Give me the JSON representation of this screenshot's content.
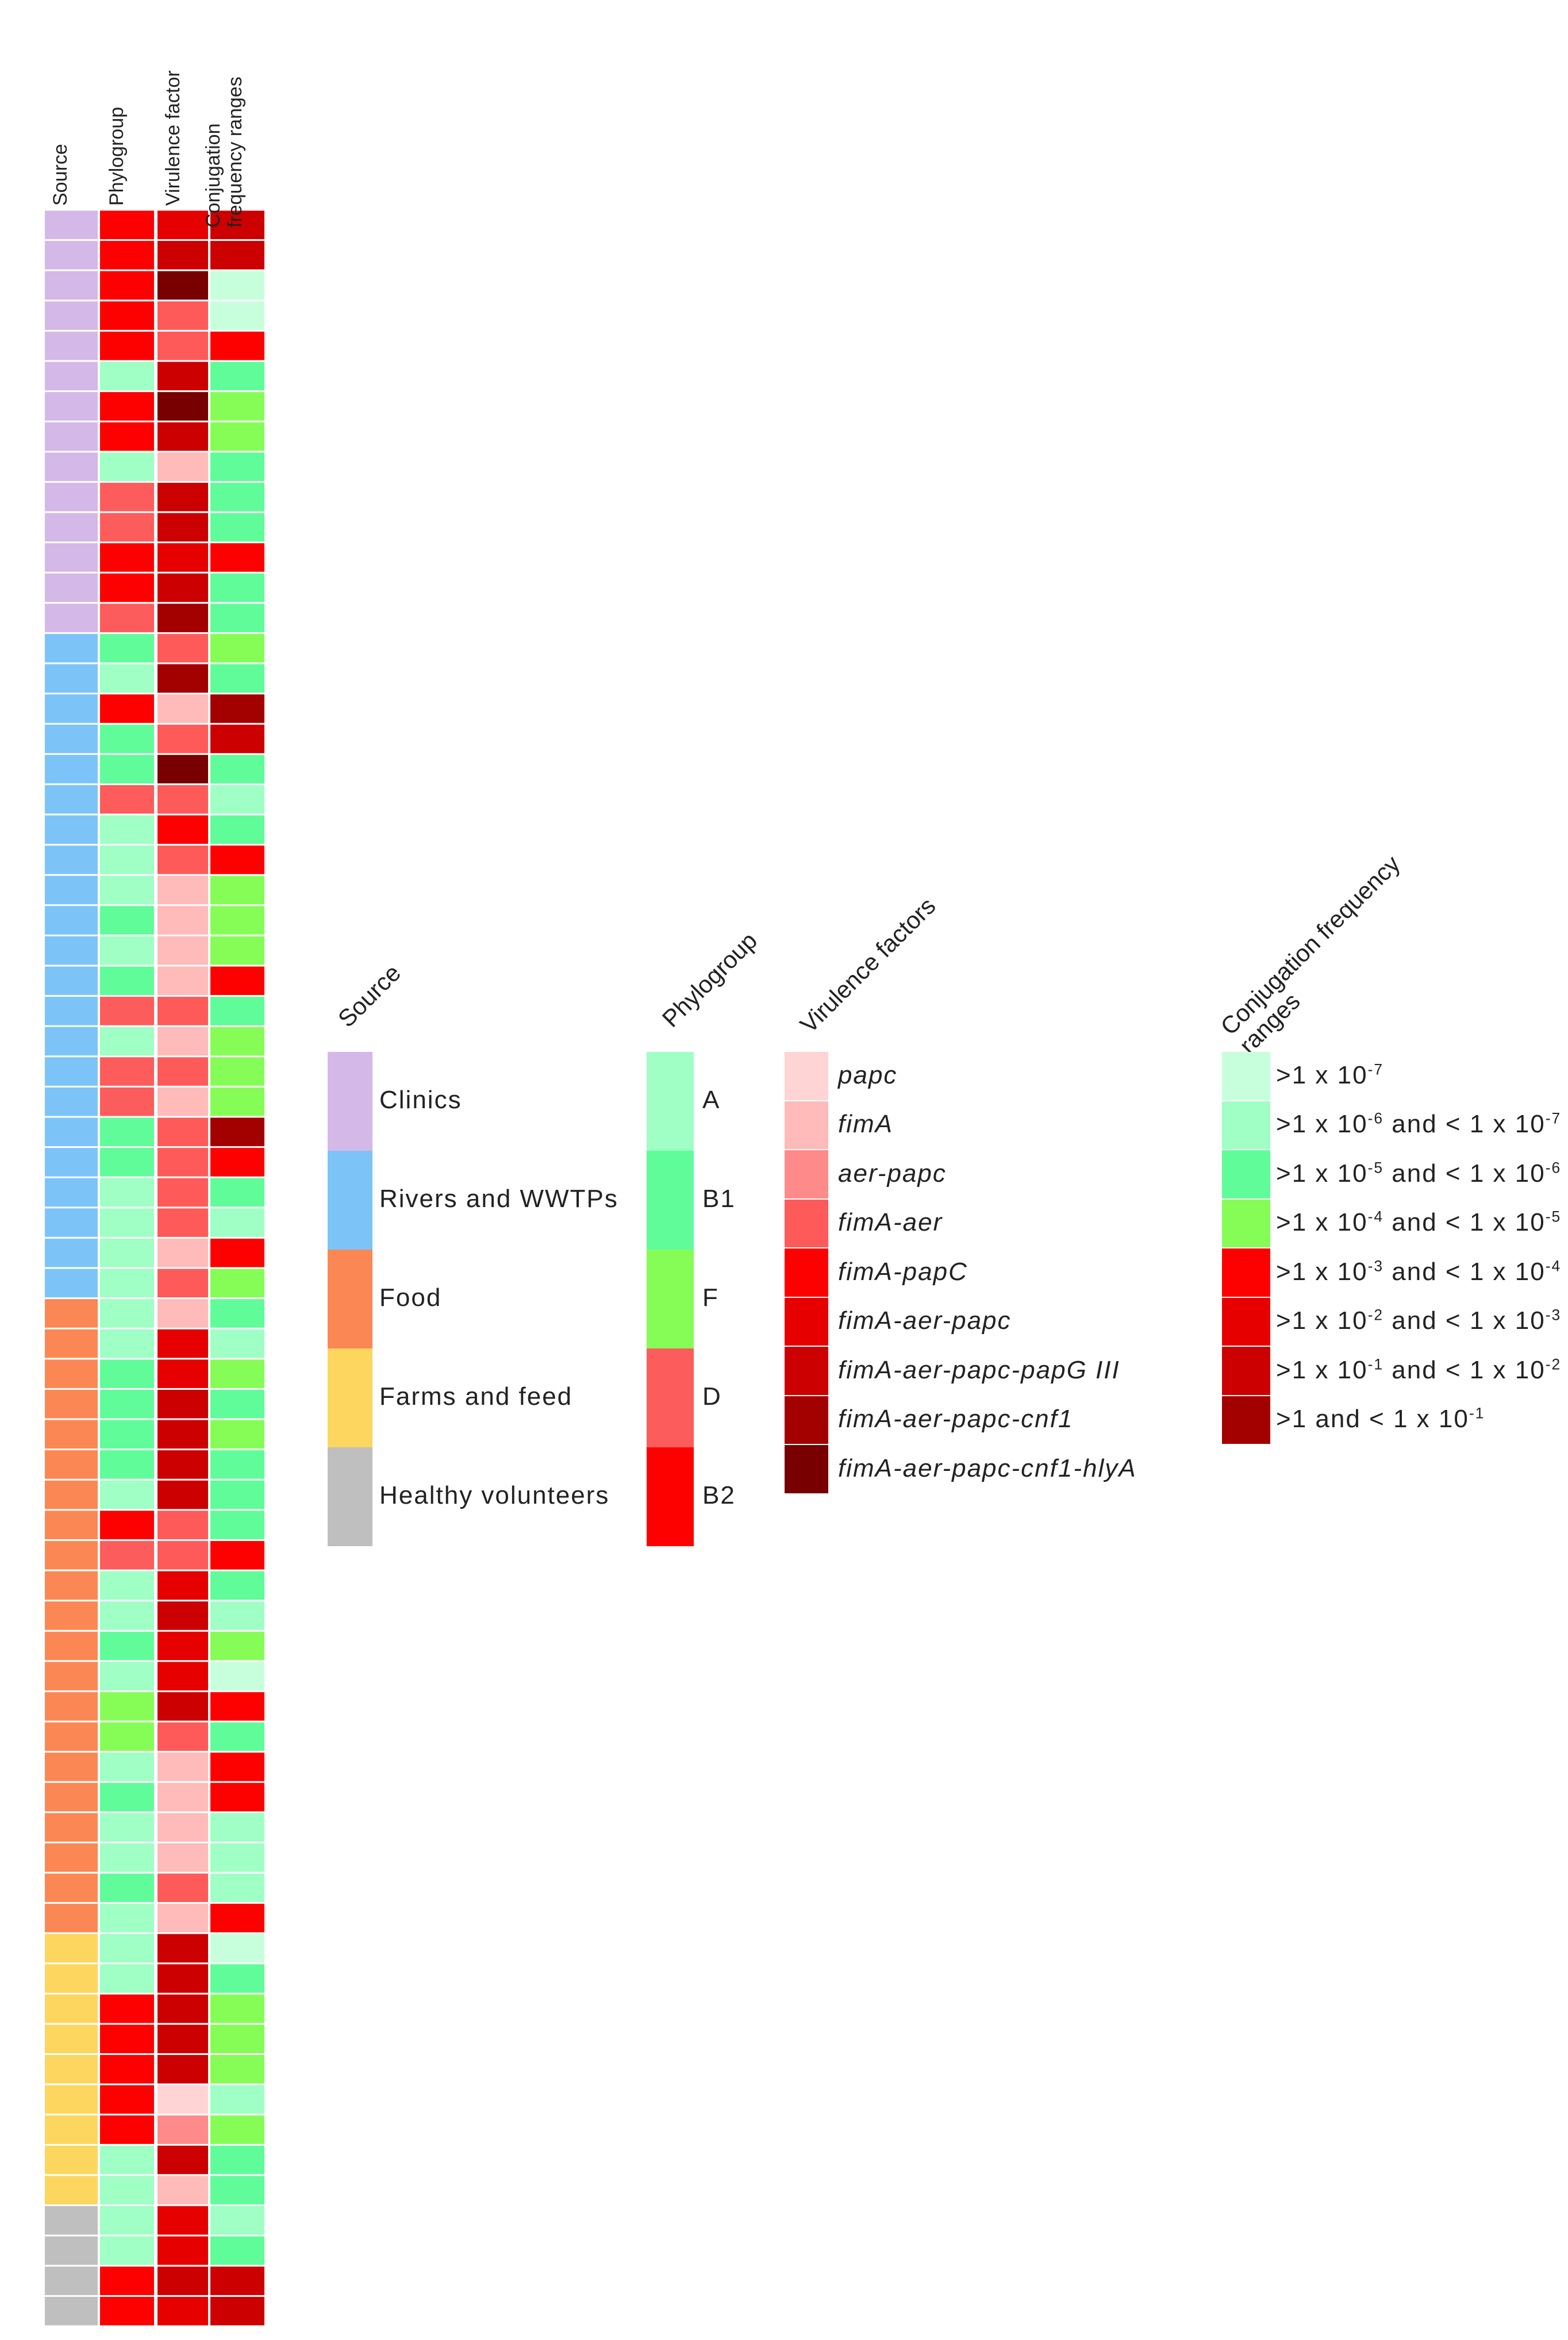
{
  "colors": {
    "source": {
      "Clinics": "#d4b8e8",
      "Rivers and WWTPs": "#7cc4f8",
      "Food": "#fb8854",
      "Farms and feed": "#fdd65f",
      "Healthy volunteers": "#bfbfbf"
    },
    "phylogroup": {
      "A": "#9fffc4",
      "B1": "#60fc9a",
      "F": "#86fd57",
      "D": "#fd5c5c",
      "B2": "#fd0000"
    },
    "virulence": [
      "#ffd4d4",
      "#ffbaba",
      "#ff8a8a",
      "#ff5a5a",
      "#fd0000",
      "#e60000",
      "#cc0000",
      "#a30000",
      "#780000"
    ],
    "conjugation": [
      "#c7ffdc",
      "#9fffc4",
      "#60fc9a",
      "#86fd57",
      "#fd0000",
      "#e60000",
      "#cc0000",
      "#a30000"
    ]
  },
  "chart_data": {
    "type": "heatmap",
    "columns": [
      "Source",
      "Phylogroup",
      "Virulence factor",
      "Conjugation\nfrequency ranges"
    ],
    "rows": [
      [
        "Clinics",
        "B2",
        5,
        6
      ],
      [
        "Clinics",
        "B2",
        6,
        6
      ],
      [
        "Clinics",
        "B2",
        8,
        0
      ],
      [
        "Clinics",
        "B2",
        3,
        0
      ],
      [
        "Clinics",
        "B2",
        3,
        4
      ],
      [
        "Clinics",
        "A",
        6,
        2
      ],
      [
        "Clinics",
        "B2",
        8,
        3
      ],
      [
        "Clinics",
        "B2",
        6,
        3
      ],
      [
        "Clinics",
        "A",
        1,
        2
      ],
      [
        "Clinics",
        "D",
        6,
        2
      ],
      [
        "Clinics",
        "D",
        6,
        2
      ],
      [
        "Clinics",
        "B2",
        5,
        4
      ],
      [
        "Clinics",
        "B2",
        6,
        2
      ],
      [
        "Clinics",
        "D",
        7,
        2
      ],
      [
        "Rivers and WWTPs",
        "B1",
        3,
        3
      ],
      [
        "Rivers and WWTPs",
        "A",
        7,
        2
      ],
      [
        "Rivers and WWTPs",
        "B2",
        1,
        7
      ],
      [
        "Rivers and WWTPs",
        "B1",
        3,
        6
      ],
      [
        "Rivers and WWTPs",
        "B1",
        8,
        2
      ],
      [
        "Rivers and WWTPs",
        "D",
        3,
        1
      ],
      [
        "Rivers and WWTPs",
        "A",
        4,
        2
      ],
      [
        "Rivers and WWTPs",
        "A",
        3,
        4
      ],
      [
        "Rivers and WWTPs",
        "A",
        1,
        3
      ],
      [
        "Rivers and WWTPs",
        "B1",
        1,
        3
      ],
      [
        "Rivers and WWTPs",
        "A",
        1,
        3
      ],
      [
        "Rivers and WWTPs",
        "B1",
        1,
        4
      ],
      [
        "Rivers and WWTPs",
        "D",
        3,
        2
      ],
      [
        "Rivers and WWTPs",
        "A",
        1,
        3
      ],
      [
        "Rivers and WWTPs",
        "D",
        3,
        3
      ],
      [
        "Rivers and WWTPs",
        "D",
        1,
        3
      ],
      [
        "Rivers and WWTPs",
        "B1",
        3,
        7
      ],
      [
        "Rivers and WWTPs",
        "B1",
        3,
        4
      ],
      [
        "Rivers and WWTPs",
        "A",
        3,
        2
      ],
      [
        "Rivers and WWTPs",
        "A",
        3,
        1
      ],
      [
        "Rivers and WWTPs",
        "A",
        1,
        4
      ],
      [
        "Rivers and WWTPs",
        "A",
        3,
        3
      ],
      [
        "Food",
        "A",
        1,
        2
      ],
      [
        "Food",
        "A",
        5,
        1
      ],
      [
        "Food",
        "B1",
        5,
        3
      ],
      [
        "Food",
        "B1",
        6,
        2
      ],
      [
        "Food",
        "B1",
        6,
        3
      ],
      [
        "Food",
        "B1",
        6,
        2
      ],
      [
        "Food",
        "A",
        6,
        2
      ],
      [
        "Food",
        "B2",
        3,
        2
      ],
      [
        "Food",
        "D",
        3,
        4
      ],
      [
        "Food",
        "A",
        5,
        2
      ],
      [
        "Food",
        "A",
        6,
        1
      ],
      [
        "Food",
        "B1",
        5,
        3
      ],
      [
        "Food",
        "A",
        5,
        0
      ],
      [
        "Food",
        "F",
        6,
        4
      ],
      [
        "Food",
        "F",
        3,
        2
      ],
      [
        "Food",
        "A",
        1,
        4
      ],
      [
        "Food",
        "B1",
        1,
        4
      ],
      [
        "Food",
        "A",
        1,
        1
      ],
      [
        "Food",
        "A",
        1,
        1
      ],
      [
        "Food",
        "B1",
        3,
        1
      ],
      [
        "Food",
        "A",
        1,
        4
      ],
      [
        "Farms and feed",
        "A",
        6,
        0
      ],
      [
        "Farms and feed",
        "A",
        6,
        2
      ],
      [
        "Farms and feed",
        "B2",
        6,
        3
      ],
      [
        "Farms and feed",
        "B2",
        6,
        3
      ],
      [
        "Farms and feed",
        "B2",
        6,
        3
      ],
      [
        "Farms and feed",
        "B2",
        0,
        1
      ],
      [
        "Farms and feed",
        "B2",
        2,
        3
      ],
      [
        "Farms and feed",
        "A",
        6,
        2
      ],
      [
        "Farms and feed",
        "A",
        1,
        2
      ],
      [
        "Healthy volunteers",
        "A",
        5,
        1
      ],
      [
        "Healthy volunteers",
        "A",
        5,
        2
      ],
      [
        "Healthy volunteers",
        "B2",
        6,
        6
      ],
      [
        "Healthy volunteers",
        "B2",
        5,
        6
      ]
    ],
    "legends": {
      "source": {
        "title": "Source",
        "items": [
          "Clinics",
          "Rivers and WWTPs",
          "Food",
          "Farms and feed",
          "Healthy volunteers"
        ]
      },
      "phylogroup": {
        "title": "Phylogroup",
        "items": [
          "A",
          "B1",
          "F",
          "D",
          "B2"
        ]
      },
      "virulence": {
        "title": "Virulence factors",
        "items": [
          "papc",
          "fimA",
          "aer-papc",
          "fimA-aer",
          "fimA-papC",
          "fimA-aer-papc",
          "fimA-aer-papc-papG III",
          "fimA-aer-papc-cnf1",
          "fimA-aer-papc-cnf1-hlyA"
        ]
      },
      "conjugation": {
        "title": "Conjugation frequency\nranges",
        "items": [
          ">1 x 10-7",
          ">1 x 10-6 and < 1 x 10-7",
          ">1 x 10-5 and < 1 x 10-6",
          ">1 x 10-4 and < 1 x 10-5",
          ">1 x 10-3 and < 1 x 10-4",
          ">1 x 10-2 and < 1 x 10-3",
          ">1 x 10-1 and < 1 x 10-2",
          ">1  and < 1 x 10-1"
        ]
      }
    }
  }
}
